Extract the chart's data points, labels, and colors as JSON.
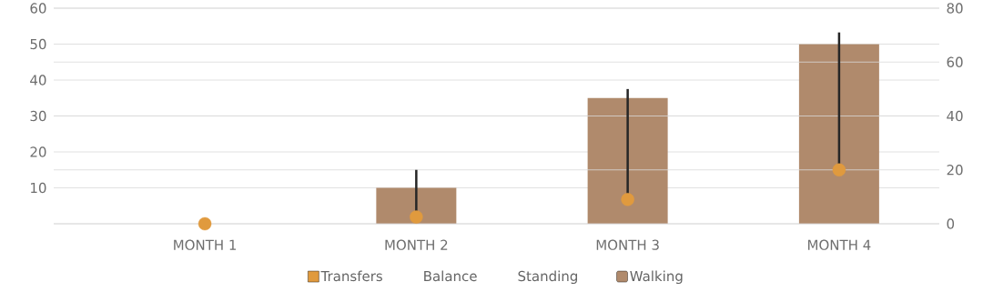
{
  "chart_data": {
    "type": "bar",
    "categories": [
      "MONTH 1",
      "MONTH 2",
      "MONTH 3",
      "MONTH 4"
    ],
    "series": [
      {
        "name": "Transfers",
        "type": "scatter",
        "color": "#e09a3e",
        "axis": "y2",
        "values": [
          0,
          2.5,
          9,
          20
        ],
        "errors": [
          null,
          [
            2.5,
            20
          ],
          [
            9,
            50
          ],
          [
            20,
            71
          ]
        ]
      },
      {
        "name": "Balance",
        "type": "line",
        "axis": "y2",
        "values": [
          null,
          null,
          null,
          null
        ]
      },
      {
        "name": "Standing",
        "type": "line",
        "axis": "y2",
        "values": [
          null,
          null,
          null,
          null
        ]
      },
      {
        "name": "Walking",
        "color": "#b08a6c",
        "values": [
          0,
          10,
          35,
          50
        ]
      }
    ],
    "ylim": [
      0,
      60
    ],
    "yticks": [
      {
        "value": 0,
        "label": null
      },
      10,
      20,
      30,
      40,
      50,
      60
    ],
    "y2lim": [
      0,
      80
    ],
    "y2ticks": [
      0,
      20,
      40,
      60,
      80
    ],
    "grid": true,
    "legend": "bottom"
  }
}
